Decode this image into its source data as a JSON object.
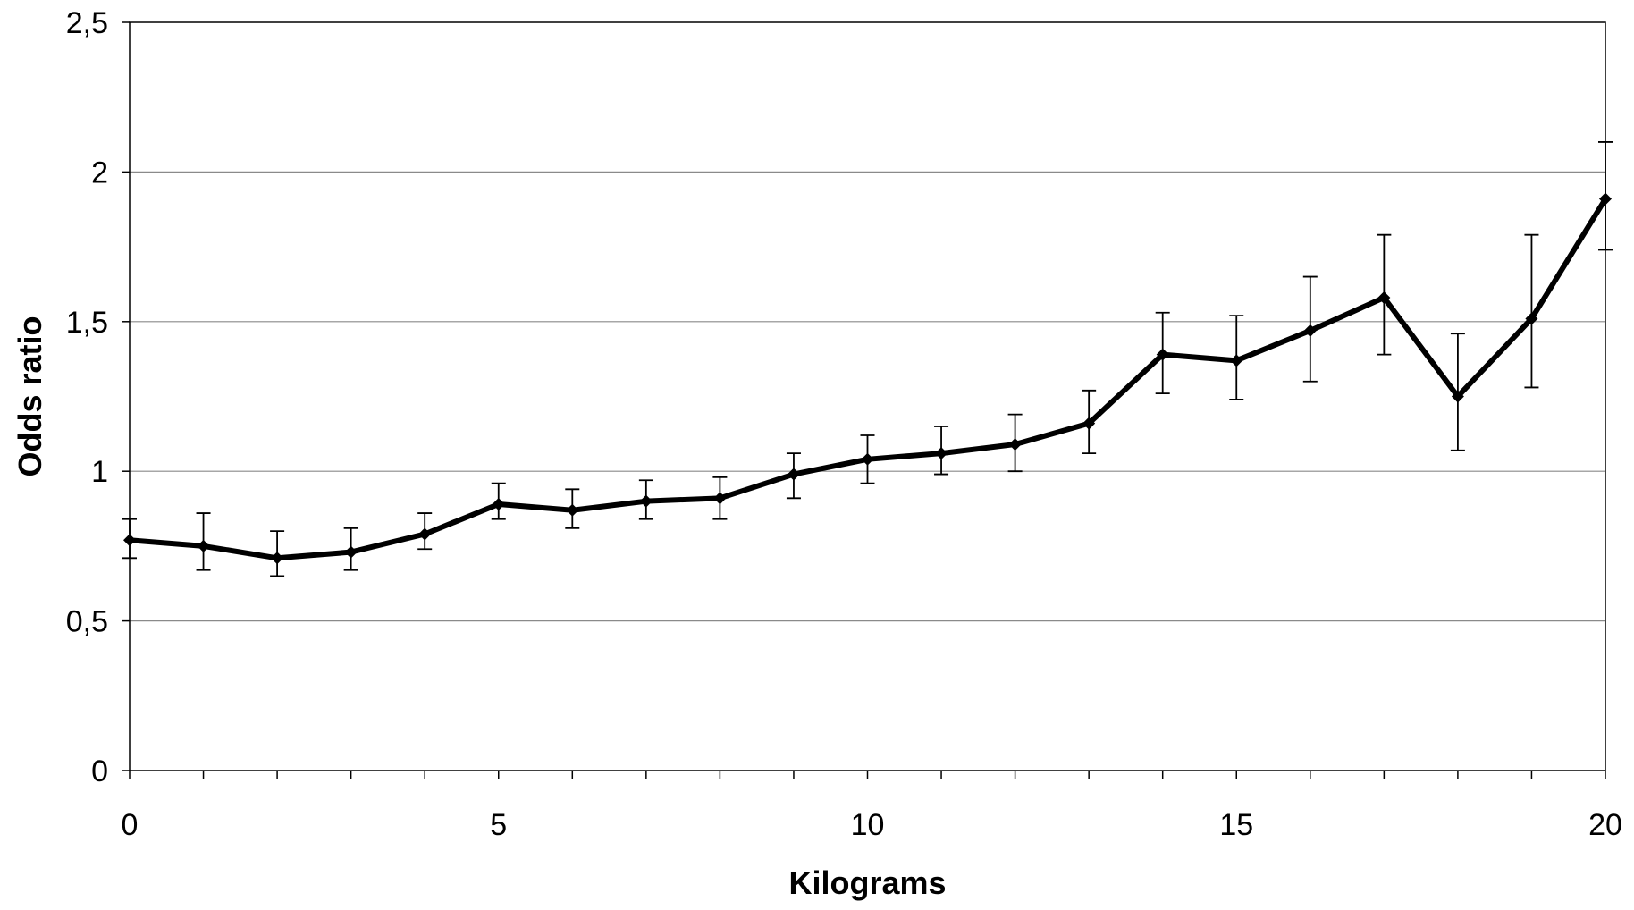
{
  "chart_data": {
    "type": "line",
    "title": "",
    "xlabel": "Kilograms",
    "ylabel": "Odds ratio",
    "xlim": [
      0,
      20
    ],
    "ylim": [
      0,
      2.5
    ],
    "x_ticks": [
      "0",
      "5",
      "10",
      "15",
      "20"
    ],
    "x_tick_values": [
      0,
      5,
      10,
      15,
      20
    ],
    "y_ticks": [
      "0",
      "0,5",
      "1",
      "1,5",
      "2",
      "2,5"
    ],
    "y_tick_values": [
      0,
      0.5,
      1,
      1.5,
      2,
      2.5
    ],
    "grid": "horizontal",
    "legend": "none",
    "series": [
      {
        "x": [
          0,
          1,
          2,
          3,
          4,
          5,
          6,
          7,
          8,
          9,
          10,
          11,
          12,
          13,
          14,
          15,
          16,
          17,
          18,
          19,
          20
        ],
        "y": [
          0.77,
          0.75,
          0.71,
          0.73,
          0.79,
          0.89,
          0.87,
          0.9,
          0.91,
          0.99,
          1.04,
          1.06,
          1.09,
          1.16,
          1.39,
          1.37,
          1.47,
          1.58,
          1.25,
          1.51,
          1.91
        ],
        "ci_lower": [
          0.71,
          0.67,
          0.65,
          0.67,
          0.74,
          0.84,
          0.81,
          0.84,
          0.84,
          0.91,
          0.96,
          0.99,
          1.0,
          1.06,
          1.26,
          1.24,
          1.3,
          1.39,
          1.07,
          1.28,
          1.74
        ],
        "ci_upper": [
          0.84,
          0.86,
          0.8,
          0.81,
          0.86,
          0.96,
          0.94,
          0.97,
          0.98,
          1.06,
          1.12,
          1.15,
          1.19,
          1.27,
          1.53,
          1.52,
          1.65,
          1.79,
          1.46,
          1.79,
          2.1
        ],
        "color": "#000000",
        "marker": "diamond"
      }
    ]
  }
}
